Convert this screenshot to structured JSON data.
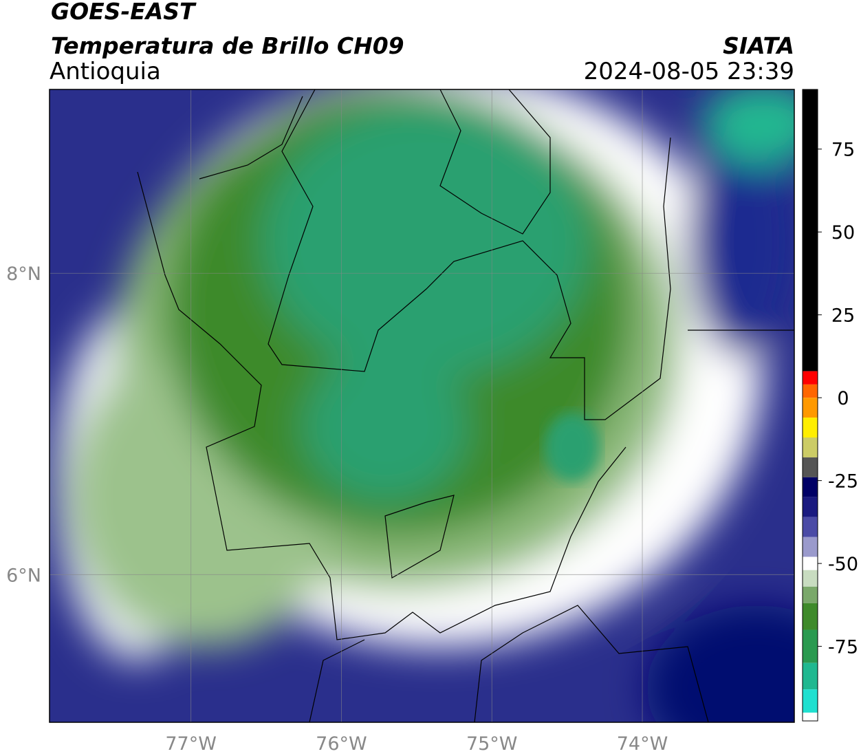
{
  "header": {
    "title": "GOES-EAST",
    "subtitle": "Temperatura de Brillo CH09",
    "region": "Antioquia",
    "source": "SIATA",
    "datetime": "2024-08-05 23:39"
  },
  "map": {
    "xlim": [
      -77.94,
      -72.99
    ],
    "ylim": [
      5.02,
      9.22
    ],
    "xticks": [
      {
        "value": -77,
        "label": "77°W"
      },
      {
        "value": -76,
        "label": "76°W"
      },
      {
        "value": -75,
        "label": "75°W"
      },
      {
        "value": -74,
        "label": "74°W"
      }
    ],
    "yticks": [
      {
        "value": 6,
        "label": "6°N"
      },
      {
        "value": 8,
        "label": "8°N"
      }
    ],
    "grid": true
  },
  "colorbar": {
    "lim": [
      -97.5,
      93
    ],
    "ticks": [
      75,
      50,
      25,
      0,
      -25,
      -50,
      -75
    ],
    "stops": [
      {
        "value": 93,
        "color": "#000000"
      },
      {
        "value": 8,
        "color": "#ff0000"
      },
      {
        "value": 4,
        "color": "#ff6600"
      },
      {
        "value": 0,
        "color": "#ff9900"
      },
      {
        "value": -6,
        "color": "#ffee00"
      },
      {
        "value": -12,
        "color": "#cccc66"
      },
      {
        "value": -18,
        "color": "#555555"
      },
      {
        "value": -24,
        "color": "#000066"
      },
      {
        "value": -30,
        "color": "#1a1a80"
      },
      {
        "value": -36,
        "color": "#4b4ba6"
      },
      {
        "value": -42,
        "color": "#9a9acc"
      },
      {
        "value": -48,
        "color": "#ffffff"
      },
      {
        "value": -52,
        "color": "#c8dcc0"
      },
      {
        "value": -57,
        "color": "#7aa86a"
      },
      {
        "value": -62,
        "color": "#3e8a2a"
      },
      {
        "value": -70,
        "color": "#2a9a50"
      },
      {
        "value": -80,
        "color": "#20b890"
      },
      {
        "value": -88,
        "color": "#20e0d0"
      },
      {
        "value": -95,
        "color": "#ffffff"
      },
      {
        "value": -97.5,
        "color": "#ffffff"
      }
    ]
  }
}
